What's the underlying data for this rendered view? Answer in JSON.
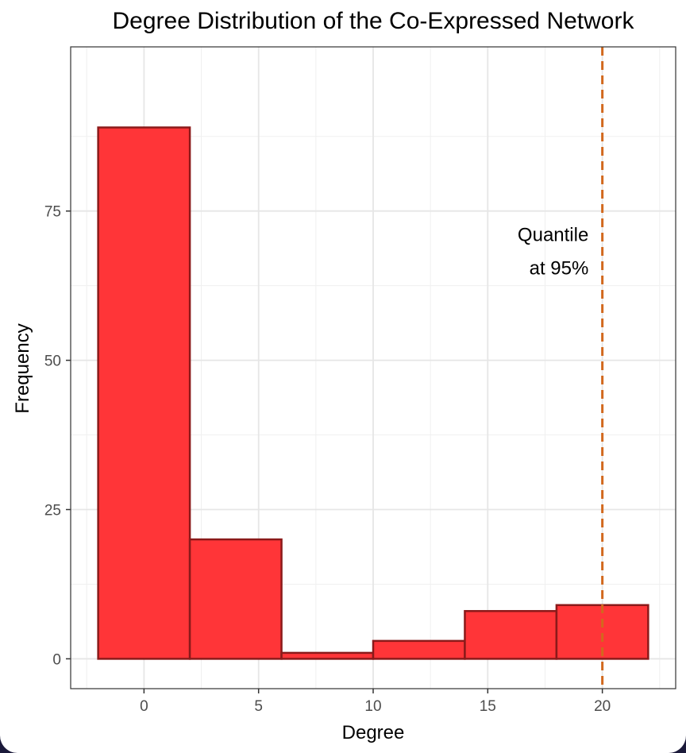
{
  "chart_data": {
    "type": "bar",
    "title": "Degree Distribution of the Co-Expressed Network",
    "xlabel": "Degree",
    "ylabel": "Frequency",
    "bins": [
      {
        "start": -2,
        "end": 2,
        "count": 89
      },
      {
        "start": 2,
        "end": 6,
        "count": 20
      },
      {
        "start": 6,
        "end": 10,
        "count": 1
      },
      {
        "start": 10,
        "end": 14,
        "count": 3
      },
      {
        "start": 14,
        "end": 18,
        "count": 8
      },
      {
        "start": 18,
        "end": 22,
        "count": 9
      }
    ],
    "xlim": [
      -3.2,
      23.2
    ],
    "ylim": [
      -5,
      102.5
    ],
    "xticks": [
      0,
      5,
      10,
      15,
      20
    ],
    "yticks": [
      0,
      25,
      50,
      75
    ],
    "grid": true,
    "bar_fill": "#ff3538",
    "bar_outline": "#8b1a1a",
    "vline": {
      "x": 20,
      "color": "#d2691e",
      "style": "dashed"
    },
    "annotation": {
      "lines": [
        "Quantile",
        "at 95%"
      ],
      "x": 19.4,
      "y": 70
    }
  }
}
